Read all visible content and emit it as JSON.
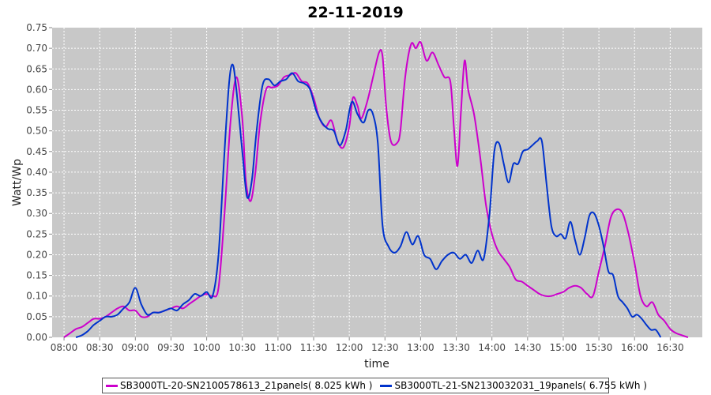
{
  "chart_data": {
    "type": "line",
    "title": "22-11-2019",
    "xlabel": "time",
    "ylabel": "Watt/Wp",
    "xlim": [
      "07:50",
      "16:57"
    ],
    "ylim": [
      0,
      0.75
    ],
    "grid": true,
    "legend_position": "bottom",
    "x_ticks": [
      "08:00",
      "08:30",
      "09:00",
      "09:30",
      "10:00",
      "10:30",
      "11:00",
      "11:30",
      "12:00",
      "12:30",
      "13:00",
      "13:30",
      "14:00",
      "14:30",
      "15:00",
      "15:30",
      "16:00",
      "16:30"
    ],
    "y_ticks": [
      "0.00",
      "0.05",
      "0.10",
      "0.15",
      "0.20",
      "0.25",
      "0.30",
      "0.35",
      "0.40",
      "0.45",
      "0.50",
      "0.55",
      "0.60",
      "0.65",
      "0.70",
      "0.75"
    ],
    "series": [
      {
        "name": "SB3000TL-20-SN2100578613_21panels( 8.025 kWh )",
        "color": "#cc00cc",
        "points": [
          [
            "08:00",
            0.0
          ],
          [
            "08:05",
            0.01
          ],
          [
            "08:10",
            0.02
          ],
          [
            "08:15",
            0.025
          ],
          [
            "08:20",
            0.035
          ],
          [
            "08:25",
            0.045
          ],
          [
            "08:30",
            0.045
          ],
          [
            "08:35",
            0.05
          ],
          [
            "08:40",
            0.06
          ],
          [
            "08:45",
            0.07
          ],
          [
            "08:50",
            0.075
          ],
          [
            "08:55",
            0.065
          ],
          [
            "09:00",
            0.065
          ],
          [
            "09:05",
            0.05
          ],
          [
            "09:10",
            0.05
          ],
          [
            "09:15",
            0.06
          ],
          [
            "09:20",
            0.06
          ],
          [
            "09:25",
            0.065
          ],
          [
            "09:30",
            0.07
          ],
          [
            "09:35",
            0.075
          ],
          [
            "09:40",
            0.07
          ],
          [
            "09:45",
            0.08
          ],
          [
            "09:50",
            0.09
          ],
          [
            "09:55",
            0.1
          ],
          [
            "10:00",
            0.105
          ],
          [
            "10:05",
            0.1
          ],
          [
            "10:10",
            0.12
          ],
          [
            "10:15",
            0.3
          ],
          [
            "10:20",
            0.52
          ],
          [
            "10:25",
            0.63
          ],
          [
            "10:30",
            0.53
          ],
          [
            "10:33",
            0.38
          ],
          [
            "10:37",
            0.33
          ],
          [
            "10:41",
            0.4
          ],
          [
            "10:45",
            0.52
          ],
          [
            "10:50",
            0.6
          ],
          [
            "10:55",
            0.605
          ],
          [
            "11:00",
            0.61
          ],
          [
            "11:05",
            0.63
          ],
          [
            "11:10",
            0.635
          ],
          [
            "11:15",
            0.64
          ],
          [
            "11:20",
            0.62
          ],
          [
            "11:25",
            0.615
          ],
          [
            "11:30",
            0.58
          ],
          [
            "11:35",
            0.53
          ],
          [
            "11:40",
            0.51
          ],
          [
            "11:45",
            0.525
          ],
          [
            "11:50",
            0.475
          ],
          [
            "11:55",
            0.46
          ],
          [
            "12:00",
            0.51
          ],
          [
            "12:03",
            0.58
          ],
          [
            "12:07",
            0.56
          ],
          [
            "12:10",
            0.53
          ],
          [
            "12:15",
            0.57
          ],
          [
            "12:20",
            0.63
          ],
          [
            "12:25",
            0.69
          ],
          [
            "12:28",
            0.68
          ],
          [
            "12:31",
            0.56
          ],
          [
            "12:35",
            0.475
          ],
          [
            "12:40",
            0.47
          ],
          [
            "12:43",
            0.5
          ],
          [
            "12:47",
            0.63
          ],
          [
            "12:52",
            0.71
          ],
          [
            "12:56",
            0.7
          ],
          [
            "13:00",
            0.715
          ],
          [
            "13:05",
            0.67
          ],
          [
            "13:10",
            0.69
          ],
          [
            "13:15",
            0.66
          ],
          [
            "13:20",
            0.63
          ],
          [
            "13:25",
            0.62
          ],
          [
            "13:28",
            0.51
          ],
          [
            "13:31",
            0.415
          ],
          [
            "13:34",
            0.55
          ],
          [
            "13:37",
            0.67
          ],
          [
            "13:40",
            0.6
          ],
          [
            "13:45",
            0.54
          ],
          [
            "13:50",
            0.44
          ],
          [
            "13:55",
            0.32
          ],
          [
            "14:00",
            0.25
          ],
          [
            "14:05",
            0.21
          ],
          [
            "14:10",
            0.19
          ],
          [
            "14:15",
            0.17
          ],
          [
            "14:20",
            0.14
          ],
          [
            "14:25",
            0.135
          ],
          [
            "14:30",
            0.125
          ],
          [
            "14:35",
            0.115
          ],
          [
            "14:40",
            0.105
          ],
          [
            "14:45",
            0.1
          ],
          [
            "14:50",
            0.1
          ],
          [
            "14:55",
            0.105
          ],
          [
            "15:00",
            0.11
          ],
          [
            "15:05",
            0.12
          ],
          [
            "15:10",
            0.125
          ],
          [
            "15:15",
            0.12
          ],
          [
            "15:20",
            0.105
          ],
          [
            "15:25",
            0.1
          ],
          [
            "15:30",
            0.16
          ],
          [
            "15:35",
            0.22
          ],
          [
            "15:40",
            0.29
          ],
          [
            "15:45",
            0.31
          ],
          [
            "15:50",
            0.3
          ],
          [
            "15:55",
            0.25
          ],
          [
            "16:00",
            0.18
          ],
          [
            "16:05",
            0.1
          ],
          [
            "16:10",
            0.075
          ],
          [
            "16:15",
            0.085
          ],
          [
            "16:20",
            0.055
          ],
          [
            "16:25",
            0.04
          ],
          [
            "16:30",
            0.02
          ],
          [
            "16:35",
            0.01
          ],
          [
            "16:40",
            0.005
          ],
          [
            "16:45",
            0.0
          ]
        ]
      },
      {
        "name": "SB3000TL-21-SN2130032031_19panels( 6.755 kWh )",
        "color": "#0033cc",
        "points": [
          [
            "08:10",
            0.0
          ],
          [
            "08:15",
            0.005
          ],
          [
            "08:20",
            0.015
          ],
          [
            "08:25",
            0.03
          ],
          [
            "08:30",
            0.04
          ],
          [
            "08:35",
            0.05
          ],
          [
            "08:40",
            0.05
          ],
          [
            "08:45",
            0.055
          ],
          [
            "08:50",
            0.07
          ],
          [
            "08:55",
            0.085
          ],
          [
            "09:00",
            0.12
          ],
          [
            "09:05",
            0.08
          ],
          [
            "09:10",
            0.055
          ],
          [
            "09:15",
            0.06
          ],
          [
            "09:20",
            0.06
          ],
          [
            "09:25",
            0.065
          ],
          [
            "09:30",
            0.07
          ],
          [
            "09:35",
            0.065
          ],
          [
            "09:40",
            0.08
          ],
          [
            "09:45",
            0.09
          ],
          [
            "09:50",
            0.105
          ],
          [
            "09:55",
            0.1
          ],
          [
            "10:00",
            0.11
          ],
          [
            "10:05",
            0.1
          ],
          [
            "10:10",
            0.2
          ],
          [
            "10:15",
            0.45
          ],
          [
            "10:19",
            0.62
          ],
          [
            "10:22",
            0.66
          ],
          [
            "10:25",
            0.6
          ],
          [
            "10:30",
            0.45
          ],
          [
            "10:34",
            0.34
          ],
          [
            "10:38",
            0.38
          ],
          [
            "10:42",
            0.5
          ],
          [
            "10:47",
            0.61
          ],
          [
            "10:52",
            0.625
          ],
          [
            "10:57",
            0.61
          ],
          [
            "11:02",
            0.62
          ],
          [
            "11:07",
            0.625
          ],
          [
            "11:12",
            0.64
          ],
          [
            "11:17",
            0.62
          ],
          [
            "11:22",
            0.615
          ],
          [
            "11:27",
            0.6
          ],
          [
            "11:32",
            0.55
          ],
          [
            "11:37",
            0.52
          ],
          [
            "11:42",
            0.505
          ],
          [
            "11:47",
            0.5
          ],
          [
            "11:52",
            0.465
          ],
          [
            "11:57",
            0.5
          ],
          [
            "12:02",
            0.57
          ],
          [
            "12:07",
            0.54
          ],
          [
            "12:12",
            0.52
          ],
          [
            "12:16",
            0.55
          ],
          [
            "12:20",
            0.54
          ],
          [
            "12:24",
            0.47
          ],
          [
            "12:28",
            0.27
          ],
          [
            "12:33",
            0.22
          ],
          [
            "12:38",
            0.205
          ],
          [
            "12:43",
            0.22
          ],
          [
            "12:48",
            0.255
          ],
          [
            "12:53",
            0.225
          ],
          [
            "12:58",
            0.245
          ],
          [
            "13:03",
            0.2
          ],
          [
            "13:08",
            0.19
          ],
          [
            "13:13",
            0.165
          ],
          [
            "13:18",
            0.185
          ],
          [
            "13:23",
            0.2
          ],
          [
            "13:28",
            0.205
          ],
          [
            "13:33",
            0.19
          ],
          [
            "13:38",
            0.2
          ],
          [
            "13:43",
            0.18
          ],
          [
            "13:48",
            0.21
          ],
          [
            "13:53",
            0.19
          ],
          [
            "13:58",
            0.3
          ],
          [
            "14:02",
            0.45
          ],
          [
            "14:06",
            0.47
          ],
          [
            "14:10",
            0.42
          ],
          [
            "14:14",
            0.375
          ],
          [
            "14:18",
            0.42
          ],
          [
            "14:22",
            0.42
          ],
          [
            "14:26",
            0.45
          ],
          [
            "14:30",
            0.455
          ],
          [
            "14:34",
            0.465
          ],
          [
            "14:38",
            0.475
          ],
          [
            "14:42",
            0.475
          ],
          [
            "14:46",
            0.37
          ],
          [
            "14:50",
            0.27
          ],
          [
            "14:54",
            0.245
          ],
          [
            "14:58",
            0.25
          ],
          [
            "15:02",
            0.24
          ],
          [
            "15:06",
            0.28
          ],
          [
            "15:10",
            0.235
          ],
          [
            "15:14",
            0.2
          ],
          [
            "15:18",
            0.24
          ],
          [
            "15:22",
            0.295
          ],
          [
            "15:26",
            0.3
          ],
          [
            "15:30",
            0.27
          ],
          [
            "15:34",
            0.22
          ],
          [
            "15:38",
            0.16
          ],
          [
            "15:42",
            0.15
          ],
          [
            "15:46",
            0.1
          ],
          [
            "15:50",
            0.085
          ],
          [
            "15:54",
            0.07
          ],
          [
            "15:58",
            0.05
          ],
          [
            "16:02",
            0.055
          ],
          [
            "16:06",
            0.045
          ],
          [
            "16:10",
            0.03
          ],
          [
            "16:14",
            0.018
          ],
          [
            "16:18",
            0.018
          ],
          [
            "16:22",
            0.0
          ]
        ]
      }
    ]
  }
}
